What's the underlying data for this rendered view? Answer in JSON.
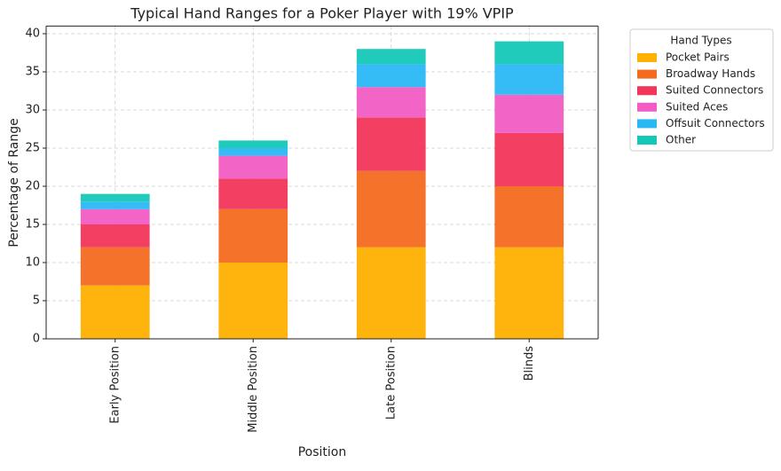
{
  "chart_data": {
    "type": "stacked_bar",
    "title": "Typical Hand Ranges for a Poker Player with 19% VPIP",
    "xlabel": "Position",
    "ylabel": "Percentage of Range",
    "categories": [
      "Early Position",
      "Middle Position",
      "Late Position",
      "Blinds"
    ],
    "series": [
      {
        "name": "Pocket Pairs",
        "color": "#ffb000",
        "values": [
          7,
          10,
          12,
          12
        ]
      },
      {
        "name": "Broadway Hands",
        "color": "#f46a1f",
        "values": [
          5,
          7,
          10,
          8
        ]
      },
      {
        "name": "Suited Connectors",
        "color": "#f23558",
        "values": [
          3,
          4,
          7,
          7
        ]
      },
      {
        "name": "Suited Aces",
        "color": "#f25cc4",
        "values": [
          2,
          3,
          4,
          5
        ]
      },
      {
        "name": "Offsuit Connectors",
        "color": "#2ab8f5",
        "values": [
          1,
          1,
          3,
          4
        ]
      },
      {
        "name": "Other",
        "color": "#14c8b8",
        "values": [
          1,
          1,
          2,
          3
        ]
      }
    ],
    "legend_title": "Hand Types",
    "legend": "outside right",
    "ylim": [
      0,
      41
    ],
    "yticks": [
      0,
      5,
      10,
      15,
      20,
      25,
      30,
      35,
      40
    ],
    "grid": true
  }
}
